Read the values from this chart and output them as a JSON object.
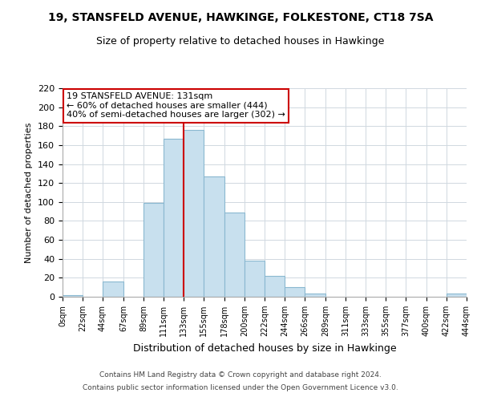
{
  "title": "19, STANSFELD AVENUE, HAWKINGE, FOLKESTONE, CT18 7SA",
  "subtitle": "Size of property relative to detached houses in Hawkinge",
  "xlabel": "Distribution of detached houses by size in Hawkinge",
  "ylabel": "Number of detached properties",
  "bar_left_edges": [
    0,
    22,
    44,
    67,
    89,
    111,
    133,
    155,
    178,
    200,
    222,
    244,
    266,
    289,
    311,
    333,
    355,
    377,
    400,
    422
  ],
  "bar_widths": [
    22,
    22,
    23,
    22,
    22,
    22,
    22,
    23,
    22,
    22,
    22,
    22,
    23,
    22,
    22,
    22,
    22,
    23,
    22,
    22
  ],
  "bar_heights": [
    2,
    0,
    16,
    0,
    99,
    167,
    176,
    127,
    89,
    38,
    22,
    10,
    3,
    0,
    0,
    0,
    0,
    0,
    0,
    3
  ],
  "bar_color": "#c8e0ee",
  "bar_edge_color": "#8ab8d0",
  "vline_x": 133,
  "vline_color": "#cc0000",
  "xlim": [
    0,
    444
  ],
  "ylim": [
    0,
    220
  ],
  "yticks": [
    0,
    20,
    40,
    60,
    80,
    100,
    120,
    140,
    160,
    180,
    200,
    220
  ],
  "xtick_labels": [
    "0sqm",
    "22sqm",
    "44sqm",
    "67sqm",
    "89sqm",
    "111sqm",
    "133sqm",
    "155sqm",
    "178sqm",
    "200sqm",
    "222sqm",
    "244sqm",
    "266sqm",
    "289sqm",
    "311sqm",
    "333sqm",
    "355sqm",
    "377sqm",
    "400sqm",
    "422sqm",
    "444sqm"
  ],
  "xtick_positions": [
    0,
    22,
    44,
    67,
    89,
    111,
    133,
    155,
    178,
    200,
    222,
    244,
    266,
    289,
    311,
    333,
    355,
    377,
    400,
    422,
    444
  ],
  "annotation_title": "19 STANSFELD AVENUE: 131sqm",
  "annotation_line1": "← 60% of detached houses are smaller (444)",
  "annotation_line2": "40% of semi-detached houses are larger (302) →",
  "footer_line1": "Contains HM Land Registry data © Crown copyright and database right 2024.",
  "footer_line2": "Contains public sector information licensed under the Open Government Licence v3.0.",
  "grid_color": "#d0d8e0",
  "background_color": "#ffffff"
}
